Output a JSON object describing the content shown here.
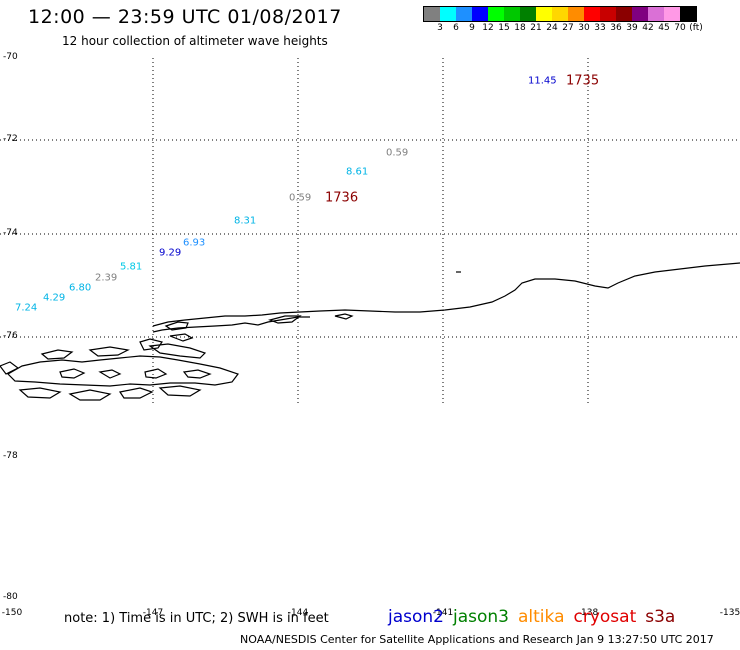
{
  "title": "12:00 — 23:59 UTC 01/08/2017",
  "subtitle": "12 hour collection of altimeter wave heights",
  "colorbar": {
    "colors": [
      "#808080",
      "#00ffff",
      "#1e90ff",
      "#0000ff",
      "#00ff00",
      "#00c800",
      "#008000",
      "#ffff00",
      "#ffd700",
      "#ff8c00",
      "#ff0000",
      "#c80000",
      "#8b0000",
      "#800080",
      "#da70d6",
      "#ff99e6",
      "#000000"
    ],
    "ticks": [
      "3",
      "6",
      "9",
      "12",
      "15",
      "18",
      "21",
      "24",
      "27",
      "30",
      "33",
      "36",
      "39",
      "42",
      "45",
      "70",
      "(ft)"
    ]
  },
  "lat_labels": [
    "-70",
    "-72",
    "-74",
    "-76",
    "-78",
    "-80"
  ],
  "lon_labels": [
    "-150",
    "-147",
    "-144",
    "-141",
    "-138",
    "-135"
  ],
  "observations": [
    {
      "text": "11.45",
      "color": "#0000cd"
    },
    {
      "text": "0.59",
      "color": "#808080"
    },
    {
      "text": "8.61",
      "color": "#00b4e6"
    },
    {
      "text": "0.59",
      "color": "#808080"
    },
    {
      "text": "8.31",
      "color": "#00b4e6"
    },
    {
      "text": "6.93",
      "color": "#1e90ff"
    },
    {
      "text": "9.29",
      "color": "#0000cd"
    },
    {
      "text": "5.81",
      "color": "#00c8e6"
    },
    {
      "text": "2.39",
      "color": "#808080"
    },
    {
      "text": "6.80",
      "color": "#00b4e6"
    },
    {
      "text": "4.29",
      "color": "#00b4e6"
    },
    {
      "text": "7.24",
      "color": "#00b4e6"
    }
  ],
  "times": [
    "1735",
    "1736"
  ],
  "note": "note: 1) Time is in UTC; 2) SWH is in feet",
  "legend": [
    {
      "text": "jason2",
      "color": "#0000cd"
    },
    {
      "text": "jason3",
      "color": "#008000"
    },
    {
      "text": "altika",
      "color": "#ff8c00"
    },
    {
      "text": "cryosat",
      "color": "#e00000"
    },
    {
      "text": "s3a",
      "color": "#8b0000"
    }
  ],
  "credit": "NOAA/NESDIS Center for Satellite Applications and Research    Jan  9 13:27:50 UTC 2017"
}
